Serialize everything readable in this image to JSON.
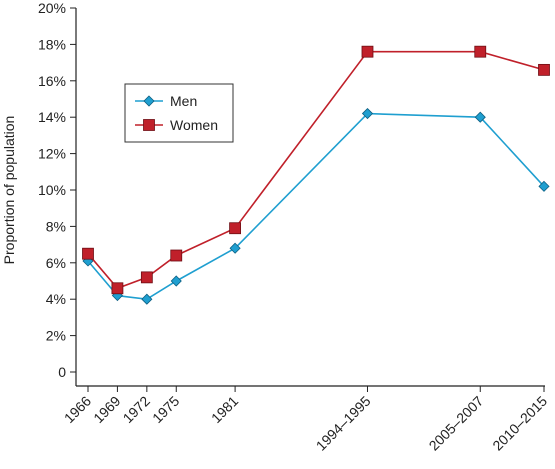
{
  "chart_data": {
    "type": "line",
    "title": "",
    "xlabel": "",
    "ylabel": "Proportion of population",
    "categories": [
      "1966",
      "1969",
      "1972",
      "1975",
      "1981",
      "1994–1995",
      "2005–2007",
      "2010–2015"
    ],
    "x_positions": [
      1966,
      1969,
      1972,
      1975,
      1981,
      1994.5,
      2006,
      2012.5
    ],
    "xlim": [
      1966,
      2012.5
    ],
    "ylim": [
      0,
      20
    ],
    "yticks": [
      0,
      2,
      4,
      6,
      8,
      10,
      12,
      14,
      16,
      18,
      20
    ],
    "ytick_labels": [
      "0",
      "2%",
      "4%",
      "6%",
      "8%",
      "10%",
      "12%",
      "14%",
      "16%",
      "18%",
      "20%"
    ],
    "grid": false,
    "legend": "upper-left",
    "series": [
      {
        "name": "Men",
        "marker": "diamond",
        "color": "#1f9fd0",
        "values": [
          6.1,
          4.2,
          4.0,
          5.0,
          6.8,
          14.2,
          14.0,
          10.2
        ]
      },
      {
        "name": "Women",
        "marker": "square",
        "color": "#c0202a",
        "values": [
          6.5,
          4.6,
          5.2,
          6.4,
          7.9,
          17.6,
          17.6,
          16.6
        ]
      }
    ]
  }
}
